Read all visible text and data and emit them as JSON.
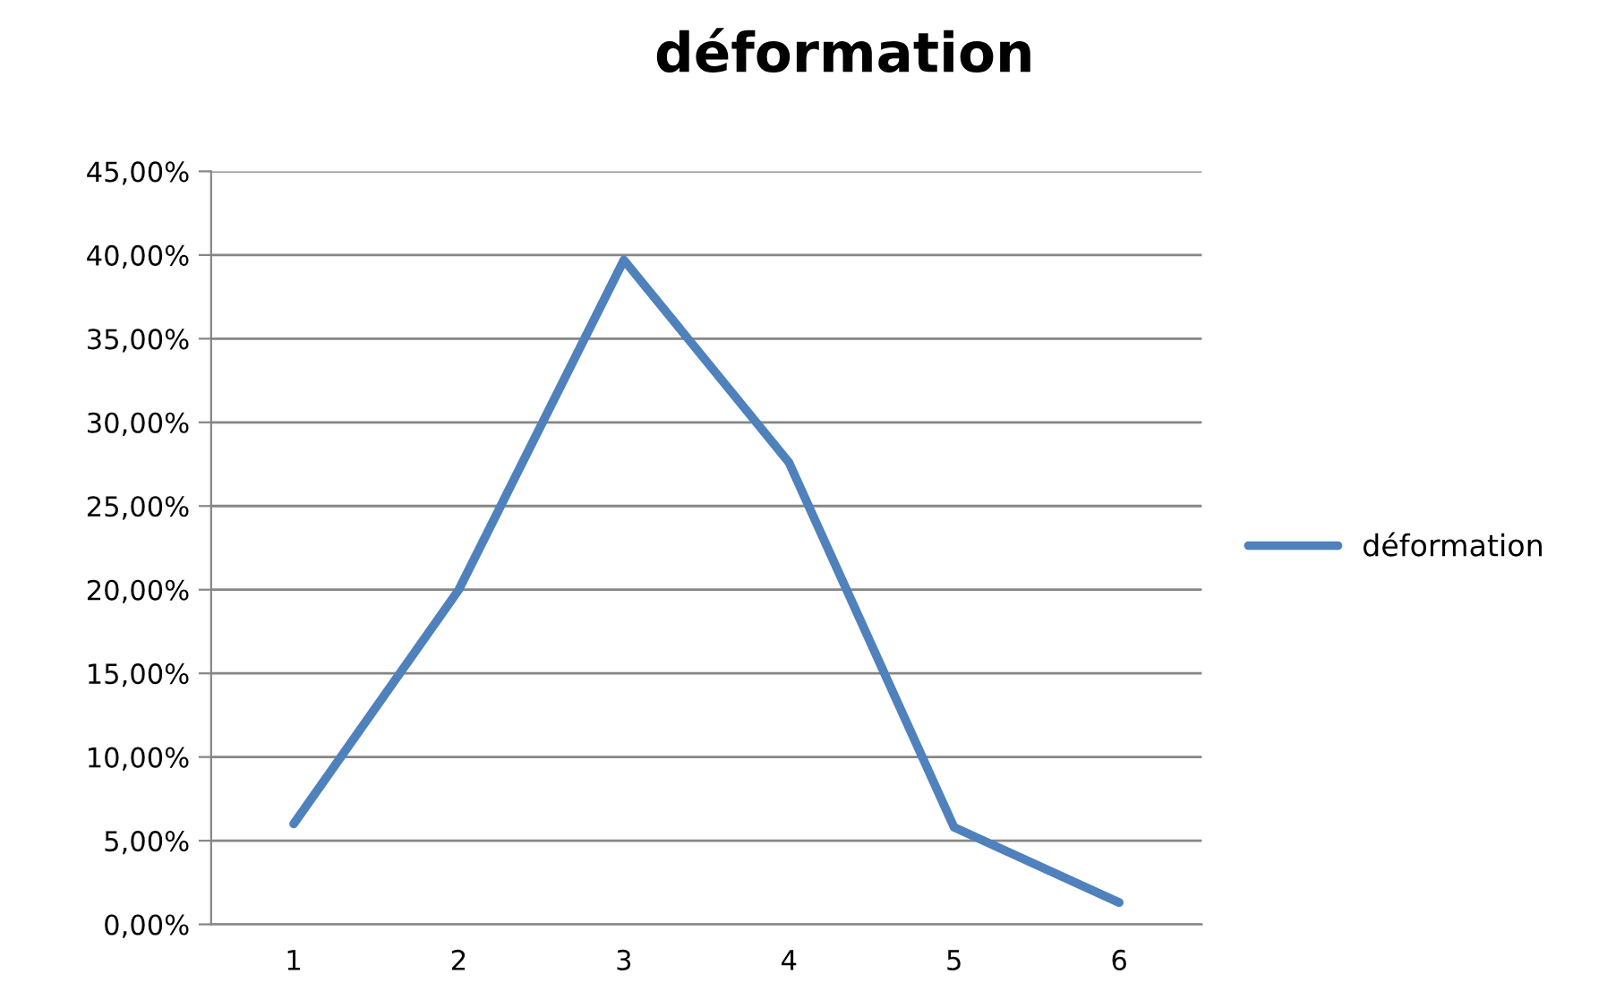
{
  "chart_data": {
    "type": "line",
    "title": "déformation",
    "categories": [
      "1",
      "2",
      "3",
      "4",
      "5",
      "6"
    ],
    "series": [
      {
        "name": "déformation",
        "color": "#4f81bd",
        "values": [
          6.0,
          20.0,
          39.7,
          27.6,
          5.8,
          1.3
        ]
      }
    ],
    "ylim": [
      0,
      45
    ],
    "yticks": [
      {
        "value": 0,
        "label": "0,00%"
      },
      {
        "value": 5,
        "label": "5,00%"
      },
      {
        "value": 10,
        "label": "10,00%"
      },
      {
        "value": 15,
        "label": "15,00%"
      },
      {
        "value": 20,
        "label": "20,00%"
      },
      {
        "value": 25,
        "label": "25,00%"
      },
      {
        "value": 30,
        "label": "30,00%"
      },
      {
        "value": 35,
        "label": "35,00%"
      },
      {
        "value": 40,
        "label": "40,00%"
      },
      {
        "value": 45,
        "label": "45,00%"
      }
    ],
    "grid": "y",
    "legend": "right",
    "marker": "none",
    "line_style": "solid"
  }
}
